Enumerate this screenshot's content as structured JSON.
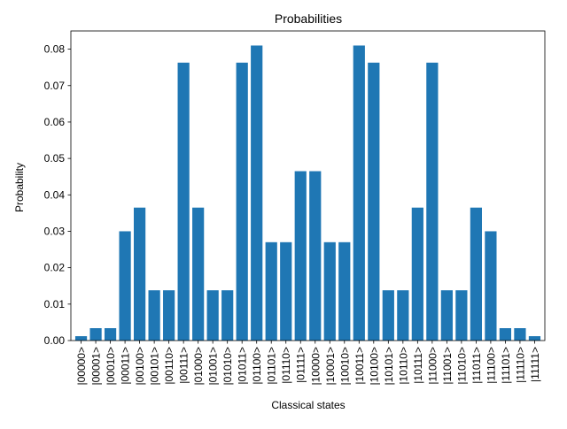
{
  "chart_data": {
    "type": "bar",
    "title": "Probabilities",
    "xlabel": "Classical states",
    "ylabel": "Probability",
    "ylim": [
      0,
      0.085
    ],
    "yticks": [
      "0.00",
      "0.01",
      "0.02",
      "0.03",
      "0.04",
      "0.05",
      "0.06",
      "0.07",
      "0.08"
    ],
    "grid": false,
    "bar_color": "#1f77b4",
    "categories": [
      "|00000>",
      "|00001>",
      "|00010>",
      "|00011>",
      "|00100>",
      "|00101>",
      "|00110>",
      "|00111>",
      "|01000>",
      "|01001>",
      "|01010>",
      "|01011>",
      "|01100>",
      "|01101>",
      "|01110>",
      "|01111>",
      "|10000>",
      "|10001>",
      "|10010>",
      "|10011>",
      "|10100>",
      "|10101>",
      "|10110>",
      "|10111>",
      "|11000>",
      "|11001>",
      "|11010>",
      "|11011>",
      "|11100>",
      "|11101>",
      "|11110>",
      "|11111>"
    ],
    "values": [
      0.0012,
      0.0034,
      0.0034,
      0.03,
      0.0365,
      0.0138,
      0.0138,
      0.0763,
      0.0365,
      0.0138,
      0.0138,
      0.0763,
      0.081,
      0.027,
      0.027,
      0.0465,
      0.0465,
      0.027,
      0.027,
      0.081,
      0.0763,
      0.0138,
      0.0138,
      0.0365,
      0.0763,
      0.0138,
      0.0138,
      0.0365,
      0.03,
      0.0034,
      0.0034,
      0.0012
    ]
  }
}
